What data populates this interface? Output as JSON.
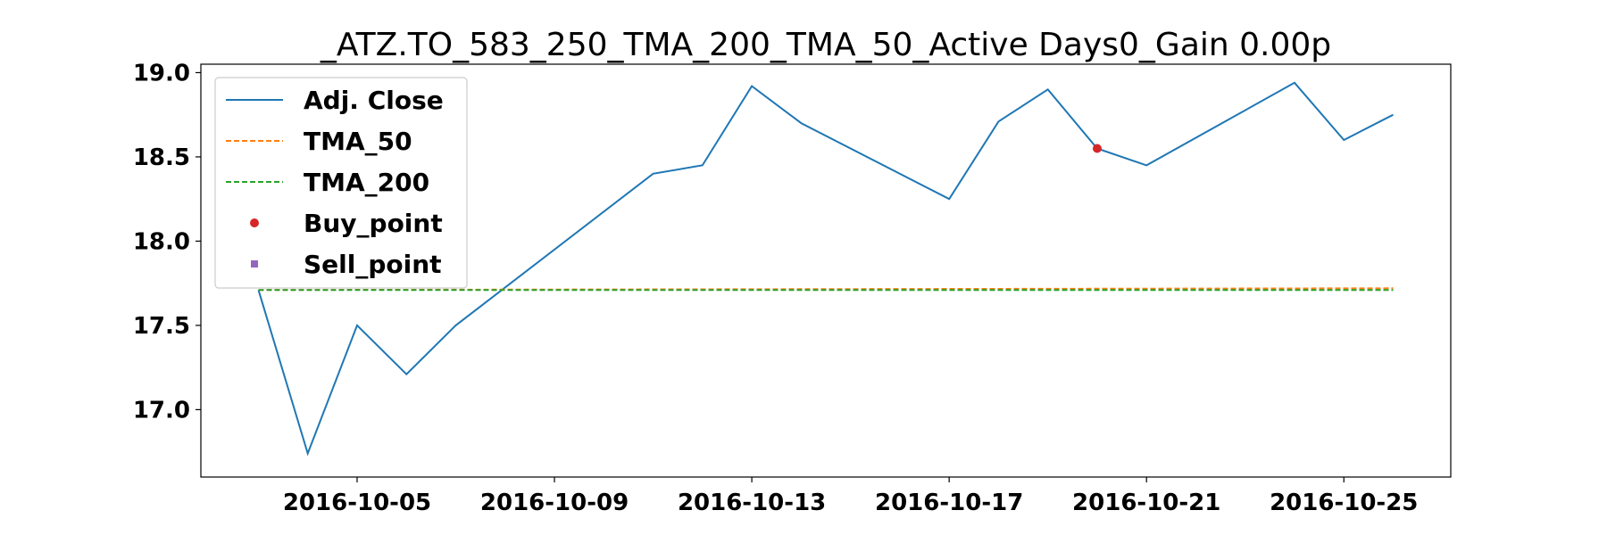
{
  "chart_data": {
    "type": "line",
    "title": "_ATZ.TO_583_250_TMA_200_TMA_50_Active Days0_Gain   0.00p",
    "xlabel": "",
    "ylabel": "",
    "xlim": [
      "2016-10-01T20:00",
      "2016-10-27T04:00"
    ],
    "ylim": [
      16.6,
      19.05
    ],
    "x_ticks": [
      "2016-10-05",
      "2016-10-09",
      "2016-10-13",
      "2016-10-17",
      "2016-10-21",
      "2016-10-25"
    ],
    "y_ticks": [
      "17.0",
      "17.5",
      "18.0",
      "18.5",
      "19.0"
    ],
    "grid": false,
    "legend_position": "top-left",
    "series": [
      {
        "name": "Adj. Close",
        "style": "solid",
        "color": "#1f77b4",
        "x": [
          "2016-10-03",
          "2016-10-04",
          "2016-10-05",
          "2016-10-06",
          "2016-10-07",
          "2016-10-11",
          "2016-10-12",
          "2016-10-13",
          "2016-10-14",
          "2016-10-17",
          "2016-10-18",
          "2016-10-19",
          "2016-10-20",
          "2016-10-21",
          "2016-10-24",
          "2016-10-25",
          "2016-10-26"
        ],
        "values": [
          17.71,
          16.74,
          17.5,
          17.21,
          17.5,
          18.4,
          18.45,
          18.92,
          18.7,
          18.25,
          18.71,
          18.9,
          18.55,
          18.45,
          18.94,
          18.6,
          18.75
        ]
      },
      {
        "name": "TMA_50",
        "style": "dashed",
        "color": "#ff7f0e",
        "x": [
          "2016-10-03",
          "2016-10-26"
        ],
        "values": [
          17.71,
          17.72
        ]
      },
      {
        "name": "TMA_200",
        "style": "dashed",
        "color": "#2ca02c",
        "x": [
          "2016-10-03",
          "2016-10-26"
        ],
        "values": [
          17.71,
          17.71
        ]
      },
      {
        "name": "Buy_point",
        "style": "marker-circle",
        "color": "#d62728",
        "x": [
          "2016-10-20"
        ],
        "values": [
          18.55
        ]
      },
      {
        "name": "Sell_point",
        "style": "marker-square",
        "color": "#9467bd",
        "x": [],
        "values": []
      }
    ]
  }
}
